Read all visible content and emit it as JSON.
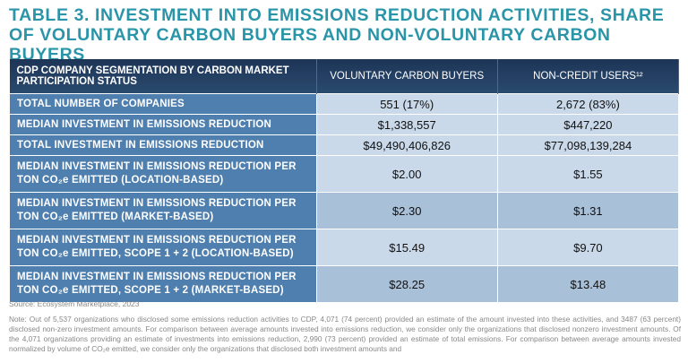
{
  "header": {
    "title": "TABLE 3. INVESTMENT INTO EMISSIONS REDUCTION ACTIVITIES, SHARE OF VOLUNTARY CARBON BUYERS AND NON-VOLUNTARY CARBON BUYERS"
  },
  "table": {
    "columns": [
      "CDP COMPANY SEGMENTATION BY CARBON MARKET PARTICIPATION STATUS",
      "VOLUNTARY CARBON BUYERS",
      "NON-CREDIT USERS¹²"
    ],
    "rows": [
      [
        "TOTAL NUMBER OF COMPANIES",
        "551 (17%)",
        "2,672 (83%)"
      ],
      [
        "MEDIAN INVESTMENT IN EMISSIONS REDUCTION",
        "$1,338,557",
        "$447,220"
      ],
      [
        "TOTAL INVESTMENT IN EMISSIONS REDUCTION",
        "$49,490,406,826",
        "$77,098,139,284"
      ],
      [
        "MEDIAN INVESTMENT IN EMISSIONS REDUCTION PER TON CO₂e EMITTED (LOCATION-BASED)",
        "$2.00",
        "$1.55"
      ],
      [
        "MEDIAN INVESTMENT IN EMISSIONS REDUCTION PER TON CO₂e EMITTED (MARKET-BASED)",
        "$2.30",
        "$1.31"
      ],
      [
        "MEDIAN INVESTMENT IN EMISSIONS REDUCTION PER TON CO₂e EMITTED, SCOPE 1 + 2 (LOCATION-BASED)",
        "$15.49",
        "$9.70"
      ],
      [
        "MEDIAN INVESTMENT IN EMISSIONS REDUCTION PER TON CO₂e EMITTED, SCOPE 1 + 2 (MARKET-BASED)",
        "$28.25",
        "$13.48"
      ]
    ]
  },
  "footer": {
    "source": "Source: Ecosystem Marketplace, 2023",
    "note": "Note: Out of 5,537 organizations who disclosed some emissions reduction activities to CDP, 4,071 (74 percent) provided an estimate of the amount invested into these activities, and 3487 (63 percent) disclosed non-zero investment amounts. For comparison between average amounts invested into emissions reduction, we consider only the organizations that disclosed nonzero investment amounts. Of the 4,071 organizations providing an estimate of investments into emissions reduction, 2,990 (73 percent) provided an estimate of total emissions. For comparison between average amounts invested normalized by volume of CO₂e emitted, we consider only the organizations that disclosed both investment amounts and"
  }
}
